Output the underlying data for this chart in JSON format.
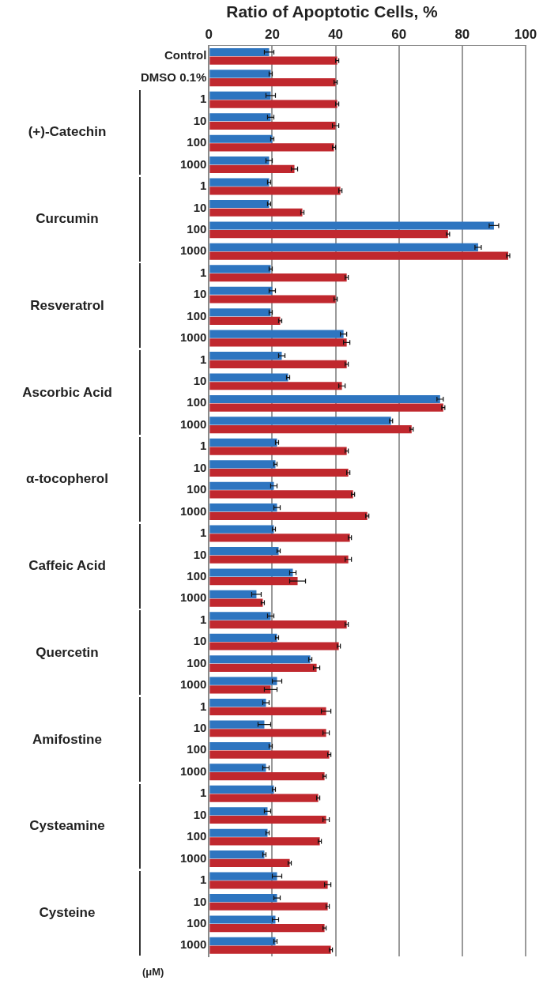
{
  "chart_data": {
    "type": "bar",
    "orientation": "horizontal",
    "title": "Ratio of Apoptotic Cells, %",
    "categories": [
      "Control",
      "DMSO 0.1%",
      "1",
      "10",
      "100",
      "1000",
      "1",
      "10",
      "100",
      "1000",
      "1",
      "10",
      "100",
      "1000",
      "1",
      "10",
      "100",
      "1000",
      "1",
      "10",
      "100",
      "1000",
      "1",
      "10",
      "100",
      "1000",
      "1",
      "10",
      "100",
      "1000",
      "1",
      "10",
      "100",
      "1000",
      "1",
      "10",
      "100",
      "1000",
      "1",
      "10",
      "100",
      "1000"
    ],
    "series": [
      {
        "color": "#2e75c0",
        "values": [
          19,
          19.5,
          19.5,
          19.5,
          20,
          19,
          19,
          19,
          90,
          85,
          19.5,
          20,
          19.5,
          42.5,
          23,
          25,
          73,
          57.5,
          21.5,
          21,
          20.5,
          21.5,
          20.5,
          22,
          26.5,
          15,
          19.5,
          21.5,
          32,
          21.5,
          18,
          17.5,
          19.5,
          18,
          20.5,
          18.5,
          18.5,
          17.5,
          21.5,
          21.5,
          21,
          21
        ],
        "errors": [
          1.5,
          0.5,
          1.5,
          1,
          0.5,
          1,
          0.5,
          0.5,
          1.5,
          1,
          0.5,
          1,
          0.5,
          1,
          1,
          0.5,
          1,
          0.5,
          0.5,
          0.5,
          1,
          1,
          0.5,
          0.5,
          1,
          1.5,
          1,
          0.5,
          0.5,
          1.5,
          1,
          2,
          0.5,
          1,
          0.5,
          1,
          0.5,
          0.5,
          1.5,
          1,
          1,
          0.5
        ]
      },
      {
        "color": "#c0282e",
        "values": [
          40.5,
          40,
          40.5,
          40,
          39.5,
          27,
          41.5,
          29.5,
          75.5,
          94.5,
          43.5,
          40,
          22.5,
          43.5,
          43.5,
          42,
          74,
          64,
          43.5,
          44,
          45.5,
          50,
          44.5,
          44,
          28,
          17,
          43.5,
          41,
          34,
          19.5,
          37,
          37,
          38,
          36.5,
          34.5,
          37,
          35,
          25.5,
          37.5,
          37.5,
          36.5,
          38.5
        ],
        "errors": [
          0.5,
          0.5,
          0.5,
          1,
          0.5,
          1,
          0.5,
          0.5,
          0.5,
          0.5,
          0.5,
          0.5,
          0.5,
          1,
          0.5,
          1,
          0.5,
          0.5,
          0.5,
          0.5,
          0.5,
          0.5,
          0.5,
          1,
          2.5,
          0.5,
          0.5,
          0.5,
          1,
          2,
          1.5,
          1,
          0.5,
          0.5,
          0.5,
          1,
          0.5,
          0.5,
          1,
          0.5,
          0.5,
          0.5
        ]
      }
    ],
    "xlim": [
      0,
      100
    ],
    "xticks": [
      0,
      20,
      40,
      60,
      80,
      100
    ],
    "grid": "x",
    "annotations": [
      "(+)-Catechin",
      "Curcumin",
      "Resveratrol",
      "Ascorbic Acid",
      "α-tocopherol",
      "Caffeic Acid",
      "Quercetin",
      "Amifostine",
      "Cysteamine",
      "Cysteine",
      "(μM)"
    ]
  }
}
